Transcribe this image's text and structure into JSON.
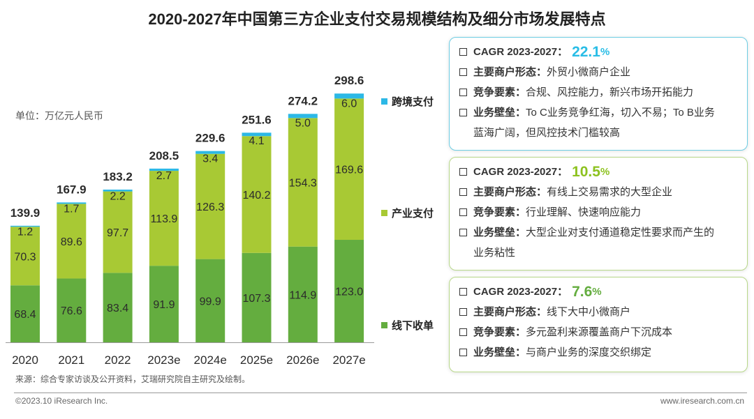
{
  "title": "2020-2027年中国第三方企业支付交易规模结构及细分市场发展特点",
  "unit": "单位：万亿元人民币",
  "colors": {
    "offline": "#64ad3f",
    "industry": "#a8c934",
    "cross_border": "#2cb8e6",
    "cagr_blue": "#29bde6",
    "cagr_green": "#8dc21f"
  },
  "chart_data": {
    "type": "bar",
    "stacked": true,
    "categories": [
      "2020",
      "2021",
      "2022",
      "2023e",
      "2024e",
      "2025e",
      "2026e",
      "2027e"
    ],
    "series": [
      {
        "name": "线下收单",
        "values": [
          68.4,
          76.6,
          83.4,
          91.9,
          99.9,
          107.3,
          114.9,
          123.0
        ],
        "labels": [
          "68.4",
          "76.6",
          "83.4",
          "91.9",
          "99.9",
          "107.3",
          "114.9",
          "123.0"
        ]
      },
      {
        "name": "产业支付",
        "values": [
          70.3,
          89.6,
          97.7,
          113.9,
          126.3,
          140.2,
          154.3,
          169.6
        ],
        "labels": [
          "70.3",
          "89.6",
          "97.7",
          "113.9",
          "126.3",
          "140.2",
          "154.3",
          "169.6"
        ]
      },
      {
        "name": "跨境支付",
        "values": [
          1.2,
          1.7,
          2.2,
          2.7,
          3.4,
          4.1,
          5.0,
          6.0
        ],
        "labels": [
          "1.2",
          "1.7",
          "2.2",
          "2.7",
          "3.4",
          "4.1",
          "5.0",
          "6.0"
        ]
      }
    ],
    "totals": [
      139.9,
      167.9,
      183.2,
      208.5,
      229.6,
      251.6,
      274.2,
      298.6
    ],
    "total_labels": [
      "139.9",
      "167.9",
      "183.2",
      "208.5",
      "229.6",
      "251.6",
      "274.2",
      "298.6"
    ],
    "legend": [
      "跨境支付",
      "产业支付",
      "线下收单"
    ],
    "legend_position": "right"
  },
  "panels": [
    {
      "cagr_label": "CAGR 2023-2027：",
      "cagr_value": "22.1",
      "cagr_pct": "%",
      "merchant_key": "主要商户形态：",
      "merchant_val": "外贸小微商户企业",
      "compete_key": "竞争要素：",
      "compete_val": "合规、风控能力，新兴市场开拓能力",
      "barrier_key": "业务壁垒：",
      "barrier_val": "To C业务竞争红海，切入不易；To B业务",
      "barrier_cont": "蓝海广阔，但风控技术门槛较高"
    },
    {
      "cagr_label": "CAGR 2023-2027：",
      "cagr_value": "10.5",
      "cagr_pct": "%",
      "merchant_key": "主要商户形态：",
      "merchant_val": "有线上交易需求的大型企业",
      "compete_key": "竞争要素：",
      "compete_val": "行业理解、快速响应能力",
      "barrier_key": "业务壁垒：",
      "barrier_val": "大型企业对支付通道稳定性要求而产生的",
      "barrier_cont": "业务粘性"
    },
    {
      "cagr_label": "CAGR 2023-2027：",
      "cagr_value": "7.6",
      "cagr_pct": "%",
      "merchant_key": "主要商户形态：",
      "merchant_val": "线下大中小微商户",
      "compete_key": "竞争要素：",
      "compete_val": "多元盈利来源覆盖商户下沉成本",
      "barrier_key": "业务壁垒：",
      "barrier_val": "与商户业务的深度交织绑定"
    }
  ],
  "source": "来源：综合专家访谈及公开资料，艾瑞研究院自主研究及绘制。",
  "copyright": "©2023.10 iResearch Inc.",
  "website": "www.iresearch.com.cn"
}
